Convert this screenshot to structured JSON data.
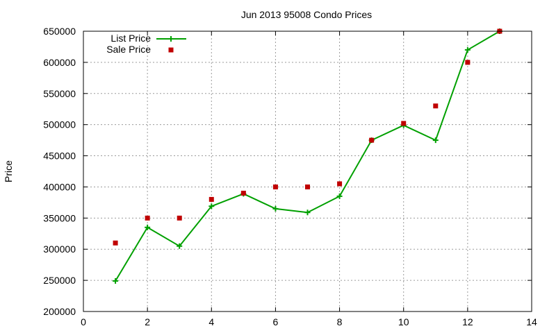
{
  "chart_data": {
    "type": "line",
    "title": "Jun 2013 95008 Condo Prices",
    "xlabel": "",
    "ylabel": "Price",
    "xlim": [
      0,
      14
    ],
    "ylim": [
      200000,
      650000
    ],
    "xticks": [
      0,
      2,
      4,
      6,
      8,
      10,
      12,
      14
    ],
    "yticks": [
      200000,
      250000,
      300000,
      350000,
      400000,
      450000,
      500000,
      550000,
      600000,
      650000
    ],
    "grid": true,
    "legend_position": "top-left",
    "series": [
      {
        "name": "List Price",
        "style": "line-with-plus-markers",
        "color": "#00a000",
        "x": [
          1,
          2,
          3,
          4,
          5,
          6,
          7,
          8,
          9,
          10,
          11,
          12,
          13
        ],
        "y": [
          249000,
          335000,
          305000,
          369000,
          389000,
          365000,
          359000,
          385000,
          475000,
          499000,
          475000,
          620000,
          650000
        ]
      },
      {
        "name": "Sale Price",
        "style": "square-points",
        "color": "#c00000",
        "x": [
          1,
          2,
          3,
          4,
          5,
          6,
          7,
          8,
          9,
          10,
          11,
          12,
          13
        ],
        "y": [
          310000,
          350000,
          350000,
          380000,
          390000,
          400000,
          400000,
          405000,
          475000,
          502000,
          530000,
          600000,
          650000
        ]
      }
    ]
  }
}
